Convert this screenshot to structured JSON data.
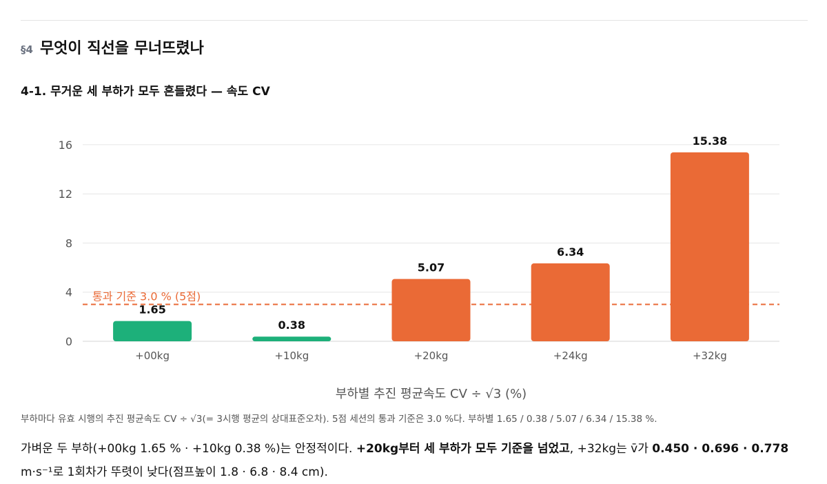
{
  "section": {
    "number": "§4",
    "title": "무엇이 직선을 무너뜨렸나"
  },
  "subsection": {
    "title": "4-1. 무거운 세 부하가 모두 흔들렸다 — 속도 CV"
  },
  "chart_data": {
    "type": "bar",
    "categories": [
      "+00kg",
      "+10kg",
      "+20kg",
      "+24kg",
      "+32kg"
    ],
    "values": [
      1.65,
      0.38,
      5.07,
      6.34,
      15.38
    ],
    "value_labels": [
      "1.65",
      "0.38",
      "5.07",
      "6.34",
      "15.38"
    ],
    "xlabel": "부하별 추진 평균속도 CV ÷ √3 (%)",
    "ylabel": "",
    "ylim": [
      0,
      17.5
    ],
    "yticks": [
      0,
      4,
      8,
      12,
      16
    ],
    "grid": true,
    "threshold": {
      "value": 3.0,
      "label": "통과 기준 3.0 % (5점)"
    },
    "colors": {
      "pass": "#1db07a",
      "fail": "#ea6a36",
      "threshold": "#ea6a36"
    }
  },
  "caption": "부하마다 유효 시행의 추진 평균속도 CV ÷ √3(= 3시행 평균의 상대표준오차). 5점 세션의 통과 기준은 3.0 %다. 부하별 1.65 / 0.38 / 5.07 / 6.34 / 15.38 %.",
  "paragraph": {
    "p1": "가벼운 두 부하(+00kg 1.65 % · +10kg 0.38 %)는 안정적이다. ",
    "p2": "+20kg부터 세 부하가 모두 기준을 넘었고",
    "p3": ", +32kg는 v̄가 ",
    "p4": "0.450 · 0.696 · 0.778",
    "p5": " m·s⁻¹로 1회차가 뚜렷이 낮다(점프높이 1.8 · 6.8 · 8.4 cm)."
  }
}
